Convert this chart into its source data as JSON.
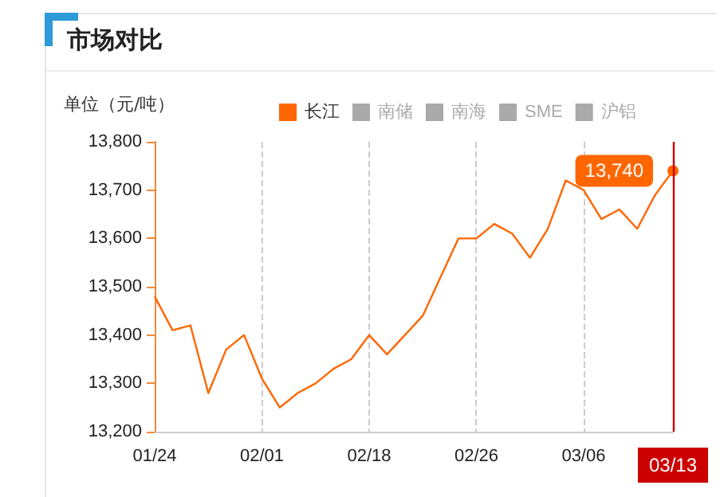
{
  "chart_data": {
    "type": "line",
    "title": "市场对比",
    "ylabel": "单位（元/吨）",
    "categories": [
      "01/24",
      null,
      null,
      null,
      null,
      null,
      "02/01",
      null,
      null,
      null,
      null,
      null,
      "02/18",
      null,
      null,
      null,
      null,
      null,
      "02/26",
      null,
      null,
      null,
      null,
      null,
      "03/06",
      null,
      null,
      null,
      null,
      "03/13"
    ],
    "series": [
      {
        "name": "长江",
        "color": "#ff6600",
        "values": [
          13480,
          13410,
          13420,
          13280,
          13370,
          13400,
          13310,
          13250,
          13280,
          13300,
          13330,
          13350,
          13400,
          13360,
          13400,
          13440,
          13520,
          13600,
          13600,
          13630,
          13610,
          13560,
          13620,
          13720,
          13700,
          13640,
          13660,
          13620,
          13690,
          13740
        ],
        "value_labels": [
          null,
          null,
          null,
          null,
          null,
          null,
          null,
          null,
          null,
          null,
          null,
          null,
          null,
          null,
          null,
          null,
          null,
          null,
          null,
          null,
          null,
          null,
          null,
          null,
          null,
          null,
          null,
          null,
          null,
          "13,740"
        ]
      },
      {
        "name": "南储",
        "values": [
          null,
          null,
          null,
          null,
          null,
          null,
          null,
          null,
          null,
          null,
          null,
          null,
          null,
          null,
          null,
          null,
          null,
          null,
          null,
          null,
          null,
          null,
          null,
          null,
          null,
          null,
          null,
          null,
          null,
          null
        ]
      },
      {
        "name": "南海",
        "values": [
          null,
          null,
          null,
          null,
          null,
          null,
          null,
          null,
          null,
          null,
          null,
          null,
          null,
          null,
          null,
          null,
          null,
          null,
          null,
          null,
          null,
          null,
          null,
          null,
          null,
          null,
          null,
          null,
          null,
          null
        ]
      },
      {
        "name": "SME",
        "values": [
          null,
          null,
          null,
          null,
          null,
          null,
          null,
          null,
          null,
          null,
          null,
          null,
          null,
          null,
          null,
          null,
          null,
          null,
          null,
          null,
          null,
          null,
          null,
          null,
          null,
          null,
          null,
          null,
          null,
          null
        ]
      },
      {
        "name": "沪铝",
        "values": [
          null,
          null,
          null,
          null,
          null,
          null,
          null,
          null,
          null,
          null,
          null,
          null,
          null,
          null,
          null,
          null,
          null,
          null,
          null,
          null,
          null,
          null,
          null,
          null,
          null,
          null,
          null,
          null,
          null,
          null
        ]
      }
    ],
    "ylim": [
      13200,
      13800
    ],
    "yticks": [
      {
        "value": 13200,
        "label": "13,200"
      },
      {
        "value": 13300,
        "label": "13,300"
      },
      {
        "value": 13400,
        "label": "13,400"
      },
      {
        "value": 13500,
        "label": "13,500"
      },
      {
        "value": 13600,
        "label": "13,600"
      },
      {
        "value": 13700,
        "label": "13,700"
      },
      {
        "value": 13800,
        "label": "13,800"
      }
    ],
    "grid": "x",
    "legend": "top",
    "marker": "none",
    "line_style": "solid",
    "ref_lines": [
      {
        "axis": "x",
        "value": "03/13",
        "color": "#cc0000"
      }
    ]
  }
}
